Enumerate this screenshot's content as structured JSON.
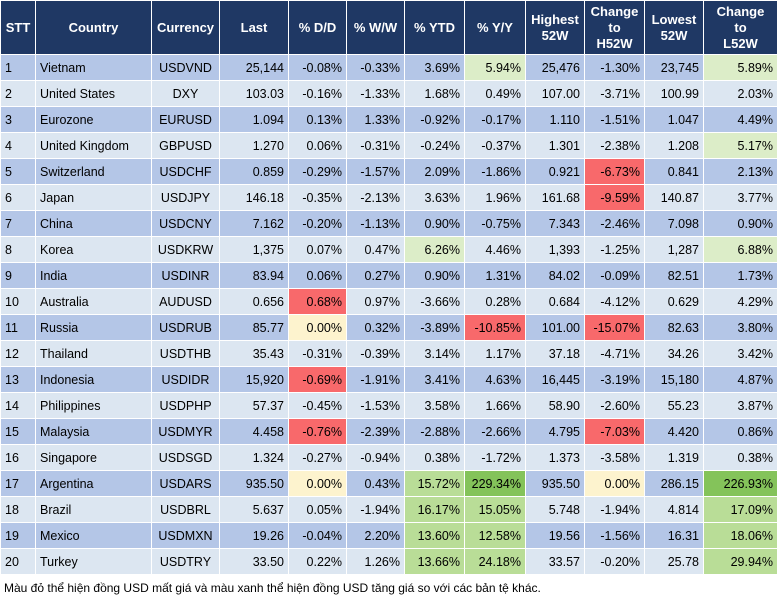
{
  "headers": [
    "STT",
    "Country",
    "Currency",
    "Last",
    "% D/D",
    "% W/W",
    "% YTD",
    "% Y/Y",
    "Highest\n52W",
    "Change\nto\nH52W",
    "Lowest\n52W",
    "Change\nto\nL52W"
  ],
  "colors": {
    "header_bg": "#1f3864",
    "row_odd": "#b4c6e7",
    "row_even": "#dce6f1",
    "neg_dark": "#f8696b",
    "neg_mid": "#fbacad",
    "neg_light": "#fcd6d7",
    "neutral": "#fdf3ce",
    "pos_light": "#dcedc8",
    "pos_mid": "#b9dd97",
    "pos_dark": "#84c35a"
  },
  "rows": [
    {
      "stt": "1",
      "country": "Vietnam",
      "currency": "USDVND",
      "last": "25,144",
      "dd": "-0.08%",
      "ww": "-0.33%",
      "ytd": "3.69%",
      "yy": "5.94%",
      "h52": "25,476",
      "ch": "-1.30%",
      "l52": "23,745",
      "cl": "5.89%"
    },
    {
      "stt": "2",
      "country": "United States",
      "currency": "DXY",
      "last": "103.03",
      "dd": "-0.16%",
      "ww": "-1.33%",
      "ytd": "1.68%",
      "yy": "0.49%",
      "h52": "107.00",
      "ch": "-3.71%",
      "l52": "100.99",
      "cl": "2.03%"
    },
    {
      "stt": "3",
      "country": "Eurozone",
      "currency": "EURUSD",
      "last": "1.094",
      "dd": "0.13%",
      "ww": "1.33%",
      "ytd": "-0.92%",
      "yy": "-0.17%",
      "h52": "1.110",
      "ch": "-1.51%",
      "l52": "1.047",
      "cl": "4.49%"
    },
    {
      "stt": "4",
      "country": "United Kingdom",
      "currency": "GBPUSD",
      "last": "1.270",
      "dd": "0.06%",
      "ww": "-0.31%",
      "ytd": "-0.24%",
      "yy": "-0.37%",
      "h52": "1.301",
      "ch": "-2.38%",
      "l52": "1.208",
      "cl": "5.17%"
    },
    {
      "stt": "5",
      "country": "Switzerland",
      "currency": "USDCHF",
      "last": "0.859",
      "dd": "-0.29%",
      "ww": "-1.57%",
      "ytd": "2.09%",
      "yy": "-1.86%",
      "h52": "0.921",
      "ch": "-6.73%",
      "l52": "0.841",
      "cl": "2.13%"
    },
    {
      "stt": "6",
      "country": "Japan",
      "currency": "USDJPY",
      "last": "146.18",
      "dd": "-0.35%",
      "ww": "-2.13%",
      "ytd": "3.63%",
      "yy": "1.96%",
      "h52": "161.68",
      "ch": "-9.59%",
      "l52": "140.87",
      "cl": "3.77%"
    },
    {
      "stt": "7",
      "country": "China",
      "currency": "USDCNY",
      "last": "7.162",
      "dd": "-0.20%",
      "ww": "-1.13%",
      "ytd": "0.90%",
      "yy": "-0.75%",
      "h52": "7.343",
      "ch": "-2.46%",
      "l52": "7.098",
      "cl": "0.90%"
    },
    {
      "stt": "8",
      "country": "Korea",
      "currency": "USDKRW",
      "last": "1,375",
      "dd": "0.07%",
      "ww": "0.47%",
      "ytd": "6.26%",
      "yy": "4.46%",
      "h52": "1,393",
      "ch": "-1.25%",
      "l52": "1,287",
      "cl": "6.88%"
    },
    {
      "stt": "9",
      "country": "India",
      "currency": "USDINR",
      "last": "83.94",
      "dd": "0.06%",
      "ww": "0.27%",
      "ytd": "0.90%",
      "yy": "1.31%",
      "h52": "84.02",
      "ch": "-0.09%",
      "l52": "82.51",
      "cl": "1.73%"
    },
    {
      "stt": "10",
      "country": "Australia",
      "currency": "AUDUSD",
      "last": "0.656",
      "dd": "0.68%",
      "ww": "0.97%",
      "ytd": "-3.66%",
      "yy": "0.28%",
      "h52": "0.684",
      "ch": "-4.12%",
      "l52": "0.629",
      "cl": "4.29%"
    },
    {
      "stt": "11",
      "country": "Russia",
      "currency": "USDRUB",
      "last": "85.77",
      "dd": "0.00%",
      "ww": "0.32%",
      "ytd": "-3.89%",
      "yy": "-10.85%",
      "h52": "101.00",
      "ch": "-15.07%",
      "l52": "82.63",
      "cl": "3.80%"
    },
    {
      "stt": "12",
      "country": "Thailand",
      "currency": "USDTHB",
      "last": "35.43",
      "dd": "-0.31%",
      "ww": "-0.39%",
      "ytd": "3.14%",
      "yy": "1.17%",
      "h52": "37.18",
      "ch": "-4.71%",
      "l52": "34.26",
      "cl": "3.42%"
    },
    {
      "stt": "13",
      "country": "Indonesia",
      "currency": "USDIDR",
      "last": "15,920",
      "dd": "-0.69%",
      "ww": "-1.91%",
      "ytd": "3.41%",
      "yy": "4.63%",
      "h52": "16,445",
      "ch": "-3.19%",
      "l52": "15,180",
      "cl": "4.87%"
    },
    {
      "stt": "14",
      "country": "Philippines",
      "currency": "USDPHP",
      "last": "57.37",
      "dd": "-0.45%",
      "ww": "-1.53%",
      "ytd": "3.58%",
      "yy": "1.66%",
      "h52": "58.90",
      "ch": "-2.60%",
      "l52": "55.23",
      "cl": "3.87%"
    },
    {
      "stt": "15",
      "country": "Malaysia",
      "currency": "USDMYR",
      "last": "4.458",
      "dd": "-0.76%",
      "ww": "-2.39%",
      "ytd": "-2.88%",
      "yy": "-2.66%",
      "h52": "4.795",
      "ch": "-7.03%",
      "l52": "4.420",
      "cl": "0.86%"
    },
    {
      "stt": "16",
      "country": "Singapore",
      "currency": "USDSGD",
      "last": "1.324",
      "dd": "-0.27%",
      "ww": "-0.94%",
      "ytd": "0.38%",
      "yy": "-1.72%",
      "h52": "1.373",
      "ch": "-3.58%",
      "l52": "1.319",
      "cl": "0.38%"
    },
    {
      "stt": "17",
      "country": "Argentina",
      "currency": "USDARS",
      "last": "935.50",
      "dd": "0.00%",
      "ww": "0.43%",
      "ytd": "15.72%",
      "yy": "229.34%",
      "h52": "935.50",
      "ch": "0.00%",
      "l52": "286.15",
      "cl": "226.93%"
    },
    {
      "stt": "18",
      "country": "Brazil",
      "currency": "USDBRL",
      "last": "5.637",
      "dd": "0.05%",
      "ww": "-1.94%",
      "ytd": "16.17%",
      "yy": "15.05%",
      "h52": "5.748",
      "ch": "-1.94%",
      "l52": "4.814",
      "cl": "17.09%"
    },
    {
      "stt": "19",
      "country": "Mexico",
      "currency": "USDMXN",
      "last": "19.26",
      "dd": "-0.04%",
      "ww": "2.20%",
      "ytd": "13.60%",
      "yy": "12.58%",
      "h52": "19.56",
      "ch": "-1.56%",
      "l52": "16.31",
      "cl": "18.06%"
    },
    {
      "stt": "20",
      "country": "Turkey",
      "currency": "USDTRY",
      "last": "33.50",
      "dd": "0.22%",
      "ww": "1.26%",
      "ytd": "13.66%",
      "yy": "24.18%",
      "h52": "33.57",
      "ch": "-0.20%",
      "l52": "25.78",
      "cl": "29.94%"
    }
  ],
  "footnote": "Màu đỏ thể hiện đồng USD mất giá và màu xanh thể hiện đồng USD tăng giá so với các bản tệ khác."
}
